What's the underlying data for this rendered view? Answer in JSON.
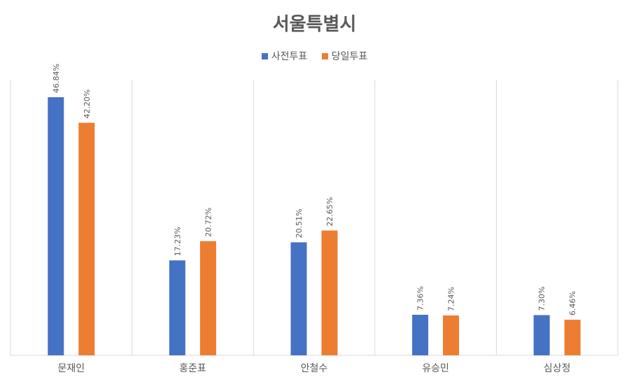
{
  "chart_data": {
    "type": "bar",
    "title": "서울특별시",
    "categories": [
      "문재인",
      "홍준표",
      "안철수",
      "유승민",
      "심상정"
    ],
    "series": [
      {
        "name": "사전투표",
        "color": "#4472C4",
        "values": [
          46.84,
          17.23,
          20.51,
          7.36,
          7.3
        ],
        "labels": [
          "46.84%",
          "17.23%",
          "20.51%",
          "7.36%",
          "7.30%"
        ]
      },
      {
        "name": "당일투표",
        "color": "#ED7D31",
        "values": [
          42.2,
          20.72,
          22.65,
          7.24,
          6.46
        ],
        "labels": [
          "42.20%",
          "20.72%",
          "22.65%",
          "7.24%",
          "6.46%"
        ]
      }
    ],
    "ylim": [
      0,
      50
    ],
    "xlabel": "",
    "ylabel": "",
    "legend_position": "top",
    "grid": "vertical separators"
  }
}
